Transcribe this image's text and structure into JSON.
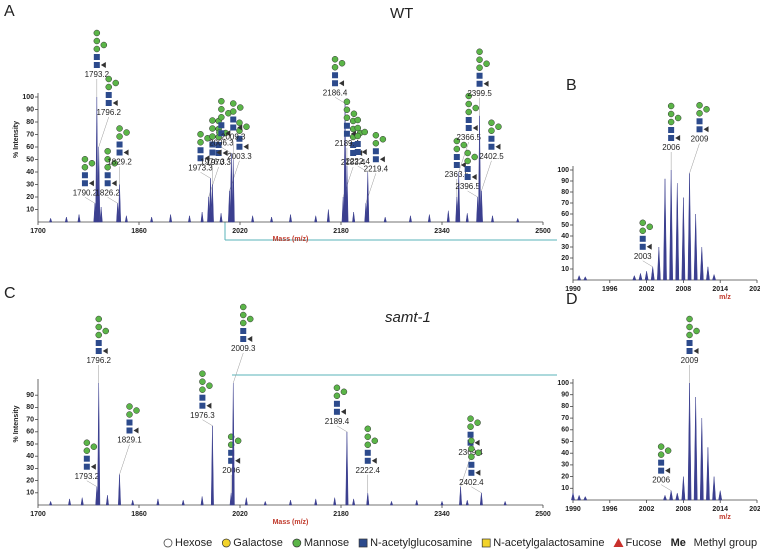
{
  "chart_data": [
    {
      "type": "spectrum",
      "panel": "A",
      "title": "WT",
      "xlabel": "Mass (m/z)",
      "ylabel": "% Intensity",
      "color": "#3b3f8f",
      "xlim": [
        1700,
        2500
      ],
      "xticks": [
        1700,
        1860,
        2020,
        2180,
        2340,
        2500
      ],
      "ylim": [
        0,
        100
      ],
      "yticks": [
        10,
        20,
        30,
        40,
        50,
        60,
        70,
        80,
        90,
        100
      ],
      "x": [
        1790.2,
        1793.2,
        1796.2,
        1826.2,
        1829.2,
        1970.3,
        1973.3,
        1976.3,
        2003.3,
        2006.3,
        2009.3,
        2183.4,
        2186.4,
        2189.4,
        2219.4,
        2222.4,
        2363.5,
        2366.5,
        2396.5,
        2399.5,
        2402.5
      ],
      "values": [
        15,
        100,
        60,
        15,
        30,
        20,
        35,
        30,
        25,
        55,
        50,
        20,
        95,
        45,
        15,
        40,
        20,
        40,
        20,
        85,
        25
      ],
      "minor_x": [
        1720,
        1745,
        1765,
        1800,
        1840,
        1880,
        1910,
        1940,
        1960,
        1990,
        2040,
        2070,
        2100,
        2140,
        2160,
        2200,
        2250,
        2290,
        2320,
        2350,
        2380,
        2420,
        2460
      ],
      "minor_values": [
        3,
        4,
        6,
        12,
        5,
        4,
        6,
        5,
        8,
        7,
        5,
        4,
        6,
        5,
        10,
        8,
        4,
        5,
        6,
        9,
        7,
        5,
        3
      ]
    },
    {
      "type": "spectrum",
      "panel": "B",
      "xlabel": "m/z",
      "color": "#3b3f8f",
      "xlim": [
        1990,
        2020
      ],
      "xticks": [
        1990,
        1996,
        2002,
        2008,
        2014,
        2020
      ],
      "ylim": [
        0,
        100
      ],
      "yticks": [
        10,
        20,
        30,
        40,
        50,
        60,
        70,
        80,
        90,
        100
      ],
      "x": [
        2003,
        2006,
        2009
      ],
      "values": [
        12,
        100,
        97
      ],
      "minor_x": [
        1991,
        1992,
        2000,
        2001,
        2002,
        2004,
        2005,
        2007,
        2008,
        2010,
        2011,
        2012,
        2013
      ],
      "minor_values": [
        4,
        3,
        4,
        6,
        8,
        30,
        92,
        88,
        75,
        60,
        30,
        12,
        5
      ]
    },
    {
      "type": "spectrum",
      "panel": "C",
      "title": "samt-1",
      "xlabel": "Mass (m/z)",
      "ylabel": "% Intensity",
      "color": "#3b3f8f",
      "xlim": [
        1700,
        2500
      ],
      "xticks": [
        1700,
        1860,
        2020,
        2180,
        2340,
        2500
      ],
      "ylim": [
        0,
        100
      ],
      "yticks": [
        10,
        20,
        30,
        40,
        50,
        60,
        70,
        80,
        90
      ],
      "x": [
        1793.2,
        1796.2,
        1829.1,
        1976.3,
        2006,
        2009.3,
        2189.4,
        2222.4,
        2369.4,
        2402.4
      ],
      "values": [
        15,
        100,
        25,
        65,
        10,
        100,
        60,
        10,
        15,
        10
      ],
      "minor_x": [
        1720,
        1750,
        1770,
        1810,
        1850,
        1890,
        1930,
        1960,
        2030,
        2060,
        2100,
        2140,
        2170,
        2200,
        2260,
        2300,
        2340,
        2380,
        2440
      ],
      "minor_values": [
        3,
        5,
        6,
        8,
        4,
        5,
        4,
        7,
        6,
        3,
        4,
        5,
        6,
        5,
        3,
        4,
        3,
        4,
        3
      ]
    },
    {
      "type": "spectrum",
      "panel": "D",
      "xlabel": "m/z",
      "color": "#3b3f8f",
      "xlim": [
        1990,
        2020
      ],
      "xticks": [
        1990,
        1996,
        2002,
        2008,
        2014,
        2020
      ],
      "ylim": [
        0,
        100
      ],
      "yticks": [
        10,
        20,
        30,
        40,
        50,
        60,
        70,
        80,
        90,
        100
      ],
      "x": [
        2006,
        2009
      ],
      "values": [
        8,
        100
      ],
      "minor_x": [
        1990,
        1991,
        1992,
        2005,
        2007,
        2008,
        2010,
        2011,
        2012,
        2013,
        2014
      ],
      "minor_values": [
        6,
        4,
        3,
        4,
        6,
        20,
        88,
        70,
        45,
        20,
        8
      ]
    }
  ],
  "legend": [
    {
      "name": "Hexose",
      "shape": "circle",
      "color": "#ffffff"
    },
    {
      "name": "Galactose",
      "shape": "circle",
      "color": "#f2d32a"
    },
    {
      "name": "Mannose",
      "shape": "circle",
      "color": "#5bb548"
    },
    {
      "name": "N-acetylglucosamine",
      "shape": "square",
      "color": "#2c4a8c"
    },
    {
      "name": "N-acetylgalactosamine",
      "shape": "square",
      "color": "#f2d32a"
    },
    {
      "name": "Fucose",
      "shape": "triangle",
      "color": "#c9302c"
    },
    {
      "name": "Methyl group",
      "shape": "text",
      "symbol": "Me"
    }
  ]
}
